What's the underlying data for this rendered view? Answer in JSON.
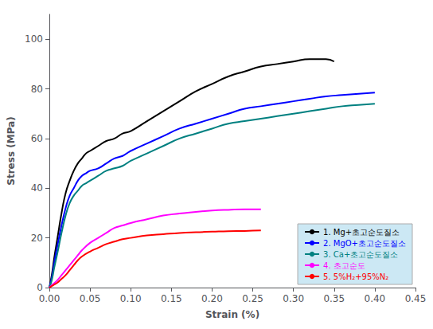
{
  "chart_data": {
    "type": "line",
    "xlabel": "Strain (%)",
    "ylabel": "Stress (MPa)",
    "xlim": [
      0,
      0.45
    ],
    "ylim": [
      0,
      110
    ],
    "xticks": [
      {
        "value": 0,
        "label": "0.00"
      },
      0.05,
      {
        "value": 0.1,
        "label": "0.10"
      },
      0.15,
      {
        "value": 0.2,
        "label": "0.20"
      },
      0.25,
      {
        "value": 0.3,
        "label": "0.30"
      },
      0.35,
      {
        "value": 0.4,
        "label": "0.40"
      },
      0.45
    ],
    "yticks": [
      0,
      20,
      40,
      60,
      80,
      100
    ],
    "grid": false,
    "legend": "lower right",
    "series": [
      {
        "name": "1. Mg+초고순도질소",
        "color": "#000000",
        "x": [
          0.0,
          0.003,
          0.006,
          0.01,
          0.015,
          0.02,
          0.025,
          0.03,
          0.035,
          0.04,
          0.045,
          0.05,
          0.06,
          0.07,
          0.08,
          0.09,
          0.1,
          0.12,
          0.14,
          0.16,
          0.18,
          0.2,
          0.22,
          0.24,
          0.26,
          0.28,
          0.3,
          0.32,
          0.34,
          0.35
        ],
        "values": [
          0,
          5,
          12,
          20,
          30,
          38,
          43,
          47,
          50,
          52,
          54,
          55,
          57,
          59,
          60,
          62,
          63,
          67,
          71,
          75,
          79,
          82,
          85,
          87,
          89,
          90,
          91,
          92,
          92,
          91
        ]
      },
      {
        "name": "2. MgO+초고순도질소",
        "color": "#0000ff",
        "x": [
          0.0,
          0.003,
          0.006,
          0.01,
          0.015,
          0.02,
          0.025,
          0.03,
          0.035,
          0.04,
          0.045,
          0.05,
          0.06,
          0.07,
          0.08,
          0.09,
          0.095,
          0.1,
          0.12,
          0.14,
          0.16,
          0.18,
          0.2,
          0.22,
          0.24,
          0.26,
          0.28,
          0.3,
          0.32,
          0.34,
          0.36,
          0.38,
          0.4
        ],
        "values": [
          0,
          4,
          10,
          17,
          25,
          32,
          37,
          40,
          43,
          45,
          46,
          47,
          48,
          50,
          52,
          53,
          54,
          55,
          58,
          61,
          64,
          66,
          68,
          70,
          72,
          73,
          74,
          75,
          76,
          77,
          77.5,
          78,
          78.5
        ]
      },
      {
        "name": "3. Ca+초고순도질소",
        "color": "#008080",
        "x": [
          0.0,
          0.003,
          0.006,
          0.01,
          0.015,
          0.02,
          0.025,
          0.03,
          0.035,
          0.04,
          0.045,
          0.05,
          0.06,
          0.07,
          0.08,
          0.09,
          0.095,
          0.1,
          0.12,
          0.14,
          0.16,
          0.18,
          0.2,
          0.22,
          0.24,
          0.26,
          0.28,
          0.3,
          0.32,
          0.34,
          0.36,
          0.38,
          0.4
        ],
        "values": [
          0,
          3,
          8,
          14,
          22,
          29,
          34,
          37,
          39,
          41,
          42,
          43,
          45,
          47,
          48,
          49,
          50,
          51,
          54,
          57,
          60,
          62,
          64,
          66,
          67,
          68,
          69,
          70,
          71,
          72,
          73,
          73.5,
          74
        ]
      },
      {
        "name": "4. 초고순도",
        "color": "#ff00ff",
        "x": [
          0.0,
          0.005,
          0.01,
          0.015,
          0.02,
          0.025,
          0.03,
          0.035,
          0.04,
          0.05,
          0.06,
          0.07,
          0.08,
          0.09,
          0.1,
          0.12,
          0.14,
          0.16,
          0.18,
          0.2,
          0.22,
          0.24,
          0.26
        ],
        "values": [
          0,
          1.5,
          3,
          5,
          7,
          9,
          11,
          13,
          15,
          18,
          20,
          22,
          24,
          25,
          26,
          27.5,
          29,
          29.8,
          30.5,
          31.0,
          31.3,
          31.5,
          31.5
        ]
      },
      {
        "name": "5. 5%H₂+95%N₂",
        "color": "#ff0000",
        "x": [
          0.0,
          0.005,
          0.01,
          0.015,
          0.02,
          0.025,
          0.03,
          0.035,
          0.04,
          0.05,
          0.06,
          0.07,
          0.08,
          0.09,
          0.1,
          0.12,
          0.14,
          0.16,
          0.18,
          0.2,
          0.22,
          0.24,
          0.26
        ],
        "values": [
          0,
          1,
          2,
          3.5,
          5,
          7,
          9,
          11,
          12.5,
          14.5,
          16,
          17.5,
          18.5,
          19.5,
          20,
          21,
          21.5,
          22,
          22.3,
          22.5,
          22.7,
          22.8,
          23.0
        ]
      }
    ]
  }
}
